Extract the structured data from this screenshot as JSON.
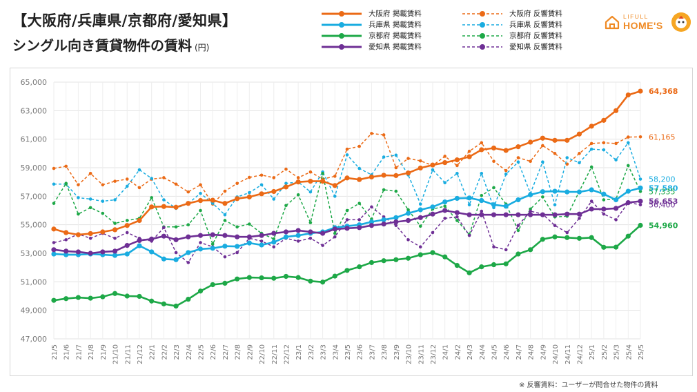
{
  "header": {
    "title_line1": "【大阪府/兵庫県/京都府/愛知県】",
    "title_line2": "シングル向き賃貸物件の賃料",
    "unit": "(円)"
  },
  "logo": {
    "top": "LIFULL",
    "bottom": "HOME'S"
  },
  "footnote": "※ 反響賃料：ユーザーが問合せた物件の賃料",
  "chart_data": {
    "type": "line",
    "x": [
      "21/5",
      "21/6",
      "21/7",
      "21/8",
      "21/9",
      "21/10",
      "21/11",
      "21/12",
      "22/1",
      "22/2",
      "22/3",
      "22/4",
      "22/5",
      "22/6",
      "22/7",
      "22/8",
      "22/9",
      "22/10",
      "22/11",
      "22/12",
      "23/1",
      "23/2",
      "23/3",
      "23/4",
      "23/5",
      "23/6",
      "23/7",
      "23/8",
      "23/9",
      "23/10",
      "23/11",
      "23/12",
      "24/1",
      "24/2",
      "24/3",
      "24/4",
      "24/5",
      "24/6",
      "24/7",
      "24/8",
      "24/9",
      "24/10",
      "24/11",
      "24/12",
      "25/1",
      "25/2",
      "25/3",
      "25/4",
      "25/5"
    ],
    "ylim": [
      47000,
      65000
    ],
    "yticks": [
      "47,000",
      "49,000",
      "51,000",
      "53,000",
      "55,000",
      "57,000",
      "59,000",
      "61,000",
      "63,000",
      "65,000"
    ],
    "grid": true,
    "series": [
      {
        "name": "大阪府 掲載賃料",
        "color": "#eb6a16",
        "style": "solid",
        "end_label": "64,368",
        "values": [
          54700,
          54450,
          54300,
          54380,
          54500,
          54650,
          54950,
          55300,
          56250,
          56280,
          56230,
          56500,
          56700,
          56720,
          56500,
          56830,
          56950,
          57170,
          57330,
          57650,
          58000,
          58050,
          58050,
          57750,
          58280,
          58170,
          58350,
          58470,
          58450,
          58630,
          58980,
          59190,
          59360,
          59550,
          59770,
          60260,
          60380,
          60210,
          60470,
          60790,
          61070,
          60920,
          60920,
          61360,
          61910,
          62320,
          63000,
          64100,
          64368
        ]
      },
      {
        "name": "兵庫県 掲載賃料",
        "color": "#19ace0",
        "style": "solid",
        "end_label": "57,580",
        "values": [
          52950,
          52900,
          52900,
          52950,
          52900,
          52850,
          52950,
          53530,
          53100,
          52600,
          52550,
          53050,
          53300,
          53350,
          53500,
          53480,
          53720,
          53580,
          53780,
          54150,
          54250,
          54400,
          54500,
          54800,
          54900,
          55000,
          55200,
          55350,
          55500,
          55800,
          56050,
          56250,
          56600,
          56850,
          56880,
          56700,
          56400,
          56300,
          56750,
          57100,
          57320,
          57350,
          57300,
          57300,
          57450,
          57150,
          56750,
          57350,
          57580
        ]
      },
      {
        "name": "京都府 掲載賃料",
        "color": "#1da847",
        "style": "solid",
        "end_label": "54,960",
        "values": [
          49700,
          49820,
          49900,
          49850,
          49950,
          50180,
          50000,
          49980,
          49650,
          49450,
          49300,
          49780,
          50350,
          50800,
          50900,
          51200,
          51300,
          51280,
          51250,
          51380,
          51300,
          51050,
          50980,
          51400,
          51800,
          52050,
          52350,
          52480,
          52550,
          52650,
          52900,
          53050,
          52750,
          52150,
          51630,
          52050,
          52200,
          52260,
          52950,
          53250,
          53980,
          54150,
          54100,
          54050,
          54100,
          53420,
          53430,
          54200,
          54960
        ]
      },
      {
        "name": "愛知県 掲載賃料",
        "color": "#6e2f95",
        "style": "solid",
        "end_label": "56,653",
        "values": [
          53250,
          53150,
          53100,
          53000,
          53100,
          53150,
          53550,
          53900,
          54000,
          54200,
          53950,
          54150,
          54250,
          54300,
          54250,
          54150,
          54150,
          54250,
          54400,
          54500,
          54600,
          54500,
          54400,
          54700,
          54750,
          54800,
          54950,
          55050,
          55200,
          55300,
          55500,
          55750,
          56000,
          55850,
          55700,
          55700,
          55700,
          55700,
          55700,
          55700,
          55700,
          55700,
          55750,
          55750,
          56100,
          56100,
          56150,
          56550,
          56653
        ]
      },
      {
        "name": "大阪府 反響賃料",
        "color": "#eb6a16",
        "style": "dashed",
        "end_label": "61,165",
        "values": [
          58950,
          59100,
          57800,
          58600,
          57800,
          58050,
          58200,
          57600,
          58200,
          58300,
          57850,
          57300,
          57800,
          56450,
          57350,
          57900,
          58320,
          58480,
          58300,
          58900,
          58300,
          58700,
          58200,
          58400,
          60300,
          60500,
          61400,
          61300,
          59000,
          59650,
          59480,
          59150,
          59800,
          59150,
          60150,
          60750,
          59450,
          58800,
          59700,
          59450,
          60550,
          60000,
          59250,
          60000,
          60700,
          60750,
          60700,
          61150,
          61165
        ]
      },
      {
        "name": "兵庫県 反響賃料",
        "color": "#19ace0",
        "style": "dashed",
        "end_label": "58,200",
        "values": [
          57850,
          57850,
          56900,
          56800,
          56650,
          56750,
          57700,
          58850,
          58250,
          56750,
          56150,
          56500,
          57200,
          56500,
          55700,
          56950,
          57250,
          57800,
          56800,
          57900,
          58000,
          57300,
          58700,
          57000,
          59900,
          58950,
          58500,
          59750,
          59880,
          58500,
          56450,
          58850,
          57950,
          58600,
          56400,
          58600,
          56200,
          58550,
          59400,
          57200,
          59400,
          56400,
          59700,
          59350,
          60300,
          60250,
          59550,
          60750,
          58200
        ]
      },
      {
        "name": "京都府 反響賃料",
        "color": "#1da847",
        "style": "dashed",
        "end_label": "57,335",
        "values": [
          56500,
          57900,
          55750,
          56200,
          55800,
          55100,
          55300,
          55450,
          56900,
          54850,
          54850,
          55000,
          56000,
          53650,
          55300,
          54850,
          55050,
          54400,
          54000,
          56350,
          57100,
          55150,
          58600,
          54400,
          56000,
          56500,
          55400,
          57450,
          57350,
          56050,
          54900,
          56100,
          56300,
          55300,
          54300,
          57050,
          57600,
          56450,
          54600,
          56100,
          56950,
          55550,
          55600,
          57350,
          59050,
          56750,
          56800,
          59150,
          57335
        ]
      },
      {
        "name": "愛知県 反響賃料",
        "color": "#6e2f95",
        "style": "dashed",
        "end_label": "56,400",
        "values": [
          53750,
          53950,
          54350,
          54050,
          54400,
          54050,
          54450,
          54050,
          53850,
          54800,
          53050,
          52350,
          53750,
          53450,
          52750,
          53050,
          54050,
          53850,
          53450,
          54050,
          53850,
          54050,
          53550,
          54150,
          55350,
          55350,
          56250,
          55550,
          54950,
          53950,
          53450,
          54450,
          55450,
          55550,
          54250,
          55950,
          53450,
          53250,
          54950,
          55950,
          55750,
          54950,
          54450,
          55450,
          56650,
          55750,
          55350,
          56550,
          56400
        ]
      }
    ]
  }
}
